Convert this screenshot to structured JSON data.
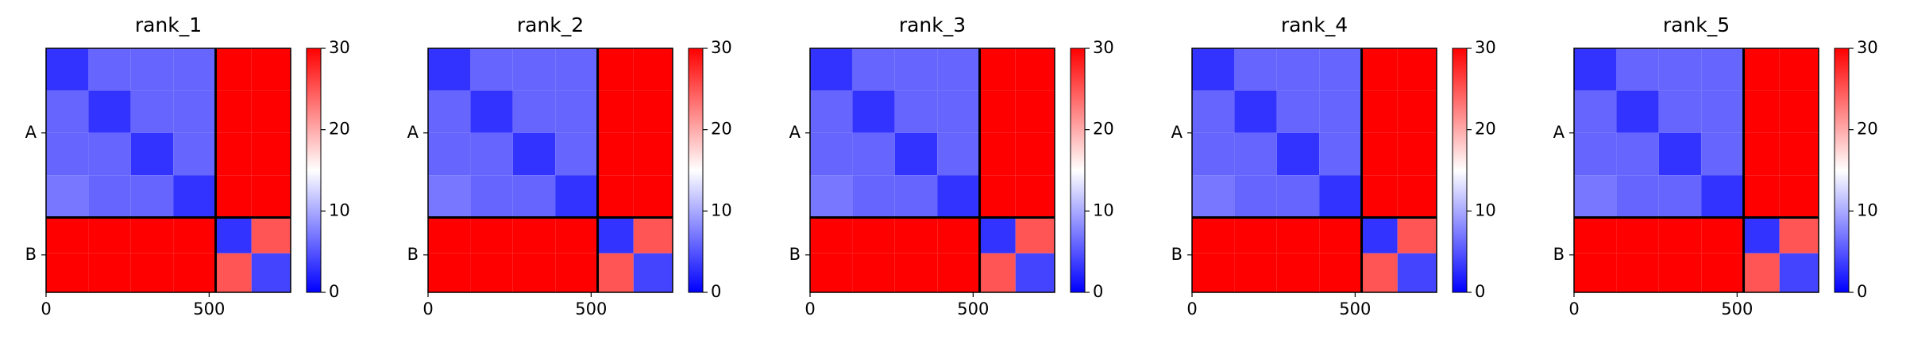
{
  "chart_data": [
    {
      "type": "heatmap",
      "title": "rank_1",
      "bins": [
        0,
        130,
        260,
        390,
        520,
        630,
        750
      ],
      "values": [
        [
          3,
          6,
          6,
          6,
          30,
          30
        ],
        [
          6,
          3,
          6,
          6,
          30,
          30
        ],
        [
          6,
          6,
          3,
          6,
          30,
          30
        ],
        [
          7,
          6,
          6,
          3,
          30,
          30
        ],
        [
          30,
          30,
          30,
          30,
          3,
          25
        ],
        [
          30,
          30,
          30,
          30,
          25,
          4
        ]
      ],
      "xlim": [
        0,
        750
      ],
      "xticks": [
        0,
        500
      ],
      "ylim": [
        750,
        0
      ],
      "yticks": [
        {
          "value": 260,
          "label": "A"
        },
        {
          "value": 635,
          "label": "B"
        }
      ],
      "chain_breaks": [
        520
      ],
      "clim": [
        0,
        30
      ],
      "cticks": [
        0,
        10,
        20,
        30
      ],
      "colors": [
        "#0000ff",
        "#ffffff",
        "#ff0000"
      ]
    },
    {
      "type": "heatmap",
      "title": "rank_2",
      "bins": [
        0,
        130,
        260,
        390,
        520,
        630,
        750
      ],
      "values": [
        [
          3,
          6,
          6,
          6,
          30,
          30
        ],
        [
          6,
          3,
          6,
          6,
          30,
          30
        ],
        [
          6,
          6,
          3,
          6,
          30,
          30
        ],
        [
          7,
          6,
          6,
          3,
          30,
          30
        ],
        [
          30,
          30,
          30,
          30,
          3,
          25
        ],
        [
          30,
          30,
          30,
          30,
          25,
          4
        ]
      ],
      "xlim": [
        0,
        750
      ],
      "xticks": [
        0,
        500
      ],
      "ylim": [
        750,
        0
      ],
      "yticks": [
        {
          "value": 260,
          "label": "A"
        },
        {
          "value": 635,
          "label": "B"
        }
      ],
      "chain_breaks": [
        520
      ],
      "clim": [
        0,
        30
      ],
      "cticks": [
        0,
        10,
        20,
        30
      ],
      "colors": [
        "#0000ff",
        "#ffffff",
        "#ff0000"
      ]
    },
    {
      "type": "heatmap",
      "title": "rank_3",
      "bins": [
        0,
        130,
        260,
        390,
        520,
        630,
        750
      ],
      "values": [
        [
          3,
          6,
          6,
          6,
          30,
          30
        ],
        [
          6,
          3,
          6,
          6,
          30,
          30
        ],
        [
          6,
          6,
          3,
          6,
          30,
          30
        ],
        [
          7,
          6,
          6,
          3,
          30,
          30
        ],
        [
          30,
          30,
          30,
          30,
          3,
          25
        ],
        [
          30,
          30,
          30,
          30,
          25,
          4
        ]
      ],
      "xlim": [
        0,
        750
      ],
      "xticks": [
        0,
        500
      ],
      "ylim": [
        750,
        0
      ],
      "yticks": [
        {
          "value": 260,
          "label": "A"
        },
        {
          "value": 635,
          "label": "B"
        }
      ],
      "chain_breaks": [
        520
      ],
      "clim": [
        0,
        30
      ],
      "cticks": [
        0,
        10,
        20,
        30
      ],
      "colors": [
        "#0000ff",
        "#ffffff",
        "#ff0000"
      ]
    },
    {
      "type": "heatmap",
      "title": "rank_4",
      "bins": [
        0,
        130,
        260,
        390,
        520,
        630,
        750
      ],
      "values": [
        [
          3,
          6,
          6,
          6,
          30,
          30
        ],
        [
          6,
          3,
          6,
          6,
          30,
          30
        ],
        [
          6,
          6,
          3,
          6,
          30,
          30
        ],
        [
          7,
          6,
          6,
          3,
          30,
          30
        ],
        [
          30,
          30,
          30,
          30,
          3,
          25
        ],
        [
          30,
          30,
          30,
          30,
          25,
          4
        ]
      ],
      "xlim": [
        0,
        750
      ],
      "xticks": [
        0,
        500
      ],
      "ylim": [
        750,
        0
      ],
      "yticks": [
        {
          "value": 260,
          "label": "A"
        },
        {
          "value": 635,
          "label": "B"
        }
      ],
      "chain_breaks": [
        520
      ],
      "clim": [
        0,
        30
      ],
      "cticks": [
        0,
        10,
        20,
        30
      ],
      "colors": [
        "#0000ff",
        "#ffffff",
        "#ff0000"
      ]
    },
    {
      "type": "heatmap",
      "title": "rank_5",
      "bins": [
        0,
        130,
        260,
        390,
        520,
        630,
        750
      ],
      "values": [
        [
          3,
          6,
          6,
          6,
          30,
          30
        ],
        [
          6,
          3,
          6,
          6,
          30,
          30
        ],
        [
          6,
          6,
          3,
          6,
          30,
          30
        ],
        [
          7,
          6,
          6,
          3,
          30,
          30
        ],
        [
          30,
          30,
          30,
          30,
          3,
          25
        ],
        [
          30,
          30,
          30,
          30,
          25,
          4
        ]
      ],
      "xlim": [
        0,
        750
      ],
      "xticks": [
        0,
        500
      ],
      "ylim": [
        750,
        0
      ],
      "yticks": [
        {
          "value": 260,
          "label": "A"
        },
        {
          "value": 635,
          "label": "B"
        }
      ],
      "chain_breaks": [
        520
      ],
      "clim": [
        0,
        30
      ],
      "cticks": [
        0,
        10,
        20,
        30
      ],
      "colors": [
        "#0000ff",
        "#ffffff",
        "#ff0000"
      ]
    }
  ]
}
